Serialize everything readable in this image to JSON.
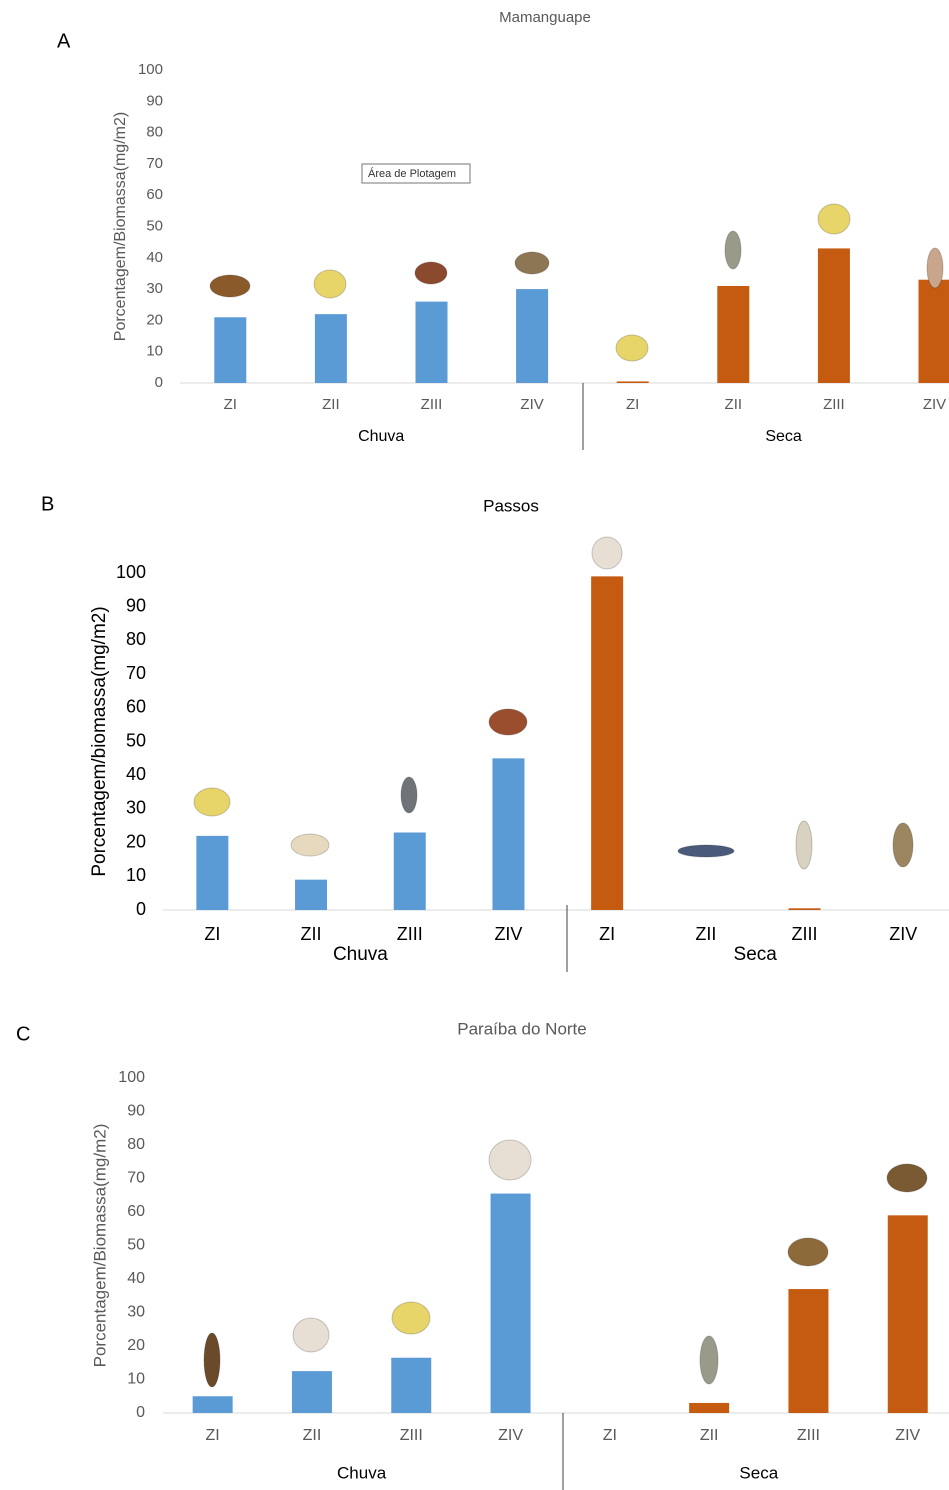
{
  "chart_data": [
    {
      "type": "bar",
      "panel_label": "A",
      "title": "Mamanguape",
      "ylabel": "Porcentagem/Biomassa(mg/m2)",
      "annotation": "Área de Plotagem",
      "categories": [
        "ZI",
        "ZII",
        "ZIII",
        "ZIV"
      ],
      "series": [
        {
          "name": "Chuva",
          "color": "#5b9bd5",
          "values": [
            21,
            22,
            26,
            30
          ]
        },
        {
          "name": "Seca",
          "color": "#c55a11",
          "values": [
            0.5,
            31,
            43,
            33
          ]
        }
      ],
      "ylim": [
        0,
        100
      ],
      "yticks": [
        0,
        10,
        20,
        30,
        40,
        50,
        60,
        70,
        80,
        90,
        100
      ]
    },
    {
      "type": "bar",
      "panel_label": "B",
      "title": "Passos",
      "ylabel": "Porcentagem/biomassa(mg/m2)",
      "categories": [
        "ZI",
        "ZII",
        "ZIII",
        "ZIV"
      ],
      "series": [
        {
          "name": "Chuva",
          "color": "#5b9bd5",
          "values": [
            22,
            9,
            23,
            45
          ]
        },
        {
          "name": "Seca",
          "color": "#c55a11",
          "values": [
            99,
            0,
            0.5,
            0
          ]
        }
      ],
      "ylim": [
        0,
        100
      ],
      "yticks": [
        0,
        10,
        20,
        30,
        40,
        50,
        60,
        70,
        80,
        90,
        100
      ]
    },
    {
      "type": "bar",
      "panel_label": "C",
      "title": "Paraíba do Norte",
      "ylabel": "Porcentagem/Biomassa(mg/m2)",
      "categories": [
        "ZI",
        "ZII",
        "ZIII",
        "ZIV"
      ],
      "series": [
        {
          "name": "Chuva",
          "color": "#5b9bd5",
          "values": [
            5,
            12.5,
            16.5,
            65.5
          ]
        },
        {
          "name": "Seca",
          "color": "#c55a11",
          "values": [
            0,
            3,
            37,
            59
          ]
        }
      ],
      "ylim": [
        0,
        100
      ],
      "yticks": [
        0,
        10,
        20,
        30,
        40,
        50,
        60,
        70,
        80,
        90,
        100
      ]
    }
  ]
}
